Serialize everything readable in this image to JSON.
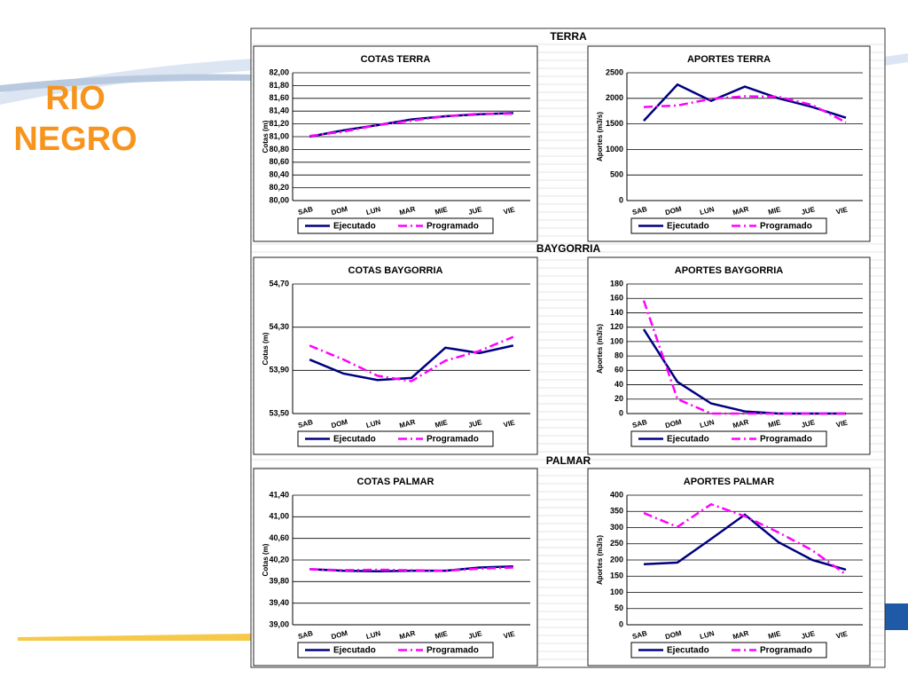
{
  "title": "RIO NEGRO",
  "sections": [
    "TERRA",
    "BAYGORRIA",
    "PALMAR"
  ],
  "chart_data": [
    {
      "type": "line",
      "title": "COTAS TERRA",
      "y_label": "Cotas (m)",
      "categories": [
        "SAB",
        "DOM",
        "LUN",
        "MAR",
        "MIE",
        "JUE",
        "VIE"
      ],
      "series": [
        {
          "name": "Ejecutado",
          "color": "#000080",
          "dashed": false,
          "values": [
            81.0,
            81.1,
            81.18,
            81.27,
            81.32,
            81.35,
            81.37
          ]
        },
        {
          "name": "Programado",
          "color": "#ff00ff",
          "dashed": true,
          "values": [
            81.01,
            81.08,
            81.18,
            81.25,
            81.32,
            81.36,
            81.36
          ]
        }
      ],
      "ylim": [
        80,
        82
      ],
      "yticks": [
        {
          "value": 80,
          "label": "80,00"
        },
        {
          "value": 80.2,
          "label": "80,20"
        },
        {
          "value": 80.4,
          "label": "80,40"
        },
        {
          "value": 80.6,
          "label": "80,60"
        },
        {
          "value": 80.8,
          "label": "80,80"
        },
        {
          "value": 81,
          "label": "81,00"
        },
        {
          "value": 81.2,
          "label": "81,20"
        },
        {
          "value": 81.4,
          "label": "81,40"
        },
        {
          "value": 81.6,
          "label": "81,60"
        },
        {
          "value": 81.8,
          "label": "81,80"
        },
        {
          "value": 82,
          "label": "82,00"
        }
      ],
      "grid": true
    },
    {
      "type": "line",
      "title": "APORTES TERRA",
      "y_label": "Aportes (m3/s)",
      "categories": [
        "SAB",
        "DOM",
        "LUN",
        "MAR",
        "MIE",
        "JUE",
        "VIE"
      ],
      "series": [
        {
          "name": "Ejecutado",
          "color": "#000080",
          "dashed": false,
          "values": [
            1560,
            2270,
            1950,
            2230,
            2000,
            1830,
            1620
          ]
        },
        {
          "name": "Programado",
          "color": "#ff00ff",
          "dashed": true,
          "values": [
            1830,
            1860,
            1990,
            2040,
            2030,
            1870,
            1530
          ]
        }
      ],
      "ylim": [
        0,
        2500
      ],
      "yticks": [
        0,
        500,
        1000,
        1500,
        2000,
        2500
      ],
      "grid": true
    },
    {
      "type": "line",
      "title": "COTAS BAYGORRIA",
      "y_label": "Cotas (m)",
      "categories": [
        "SAB",
        "DOM",
        "LUN",
        "MAR",
        "MIE",
        "JUE",
        "VIE"
      ],
      "series": [
        {
          "name": "Ejecutado",
          "color": "#000080",
          "dashed": false,
          "values": [
            54.0,
            53.87,
            53.81,
            53.83,
            54.11,
            54.06,
            54.13
          ]
        },
        {
          "name": "Programado",
          "color": "#ff00ff",
          "dashed": true,
          "values": [
            54.13,
            54.0,
            53.85,
            53.8,
            53.99,
            54.08,
            54.21
          ]
        }
      ],
      "ylim": [
        53.5,
        54.7
      ],
      "yticks": [
        {
          "value": 53.5,
          "label": "53,50"
        },
        {
          "value": 53.9,
          "label": "53,90"
        },
        {
          "value": 54.3,
          "label": "54,30"
        },
        {
          "value": 54.7,
          "label": "54,70"
        }
      ],
      "grid": true
    },
    {
      "type": "line",
      "title": "APORTES BAYGORRIA",
      "y_label": "Aportes (m3/s)",
      "categories": [
        "SAB",
        "DOM",
        "LUN",
        "MAR",
        "MIE",
        "JUE",
        "VIE"
      ],
      "series": [
        {
          "name": "Ejecutado",
          "color": "#000080",
          "dashed": false,
          "values": [
            117,
            44,
            14,
            3,
            0,
            0,
            0
          ]
        },
        {
          "name": "Programado",
          "color": "#ff00ff",
          "dashed": true,
          "values": [
            157,
            20,
            0,
            0,
            0,
            0,
            0
          ]
        }
      ],
      "ylim": [
        0,
        180
      ],
      "yticks": [
        0,
        20,
        40,
        60,
        80,
        100,
        120,
        140,
        160,
        180
      ],
      "grid": true
    },
    {
      "type": "line",
      "title": "COTAS PALMAR",
      "y_label": "Cotas (m)",
      "categories": [
        "SAB",
        "DOM",
        "LUN",
        "MAR",
        "MIE",
        "JUE",
        "VIE"
      ],
      "series": [
        {
          "name": "Ejecutado",
          "color": "#000080",
          "dashed": false,
          "values": [
            40.03,
            40.0,
            39.99,
            40.0,
            40.0,
            40.06,
            40.08
          ]
        },
        {
          "name": "Programado",
          "color": "#ff00ff",
          "dashed": true,
          "values": [
            40.03,
            40.01,
            40.02,
            40.01,
            40.0,
            40.04,
            40.06
          ]
        }
      ],
      "ylim": [
        39,
        41.4
      ],
      "yticks": [
        {
          "value": 39,
          "label": "39,00"
        },
        {
          "value": 39.4,
          "label": "39,40"
        },
        {
          "value": 39.8,
          "label": "39,80"
        },
        {
          "value": 40.2,
          "label": "40,20"
        },
        {
          "value": 40.6,
          "label": "40,60"
        },
        {
          "value": 41,
          "label": "41,00"
        },
        {
          "value": 41.4,
          "label": "41,40"
        }
      ],
      "grid": true
    },
    {
      "type": "line",
      "title": "APORTES PALMAR",
      "y_label": "Aportes (m3/s)",
      "categories": [
        "SAB",
        "DOM",
        "LUN",
        "MAR",
        "MIE",
        "JUE",
        "VIE"
      ],
      "series": [
        {
          "name": "Ejecutado",
          "color": "#000080",
          "dashed": false,
          "values": [
            187,
            192,
            265,
            340,
            255,
            200,
            170
          ]
        },
        {
          "name": "Programado",
          "color": "#ff00ff",
          "dashed": true,
          "values": [
            345,
            302,
            372,
            335,
            285,
            230,
            155
          ]
        }
      ],
      "ylim": [
        0,
        400
      ],
      "yticks": [
        0,
        50,
        100,
        150,
        200,
        250,
        300,
        350,
        400
      ],
      "grid": true
    }
  ]
}
